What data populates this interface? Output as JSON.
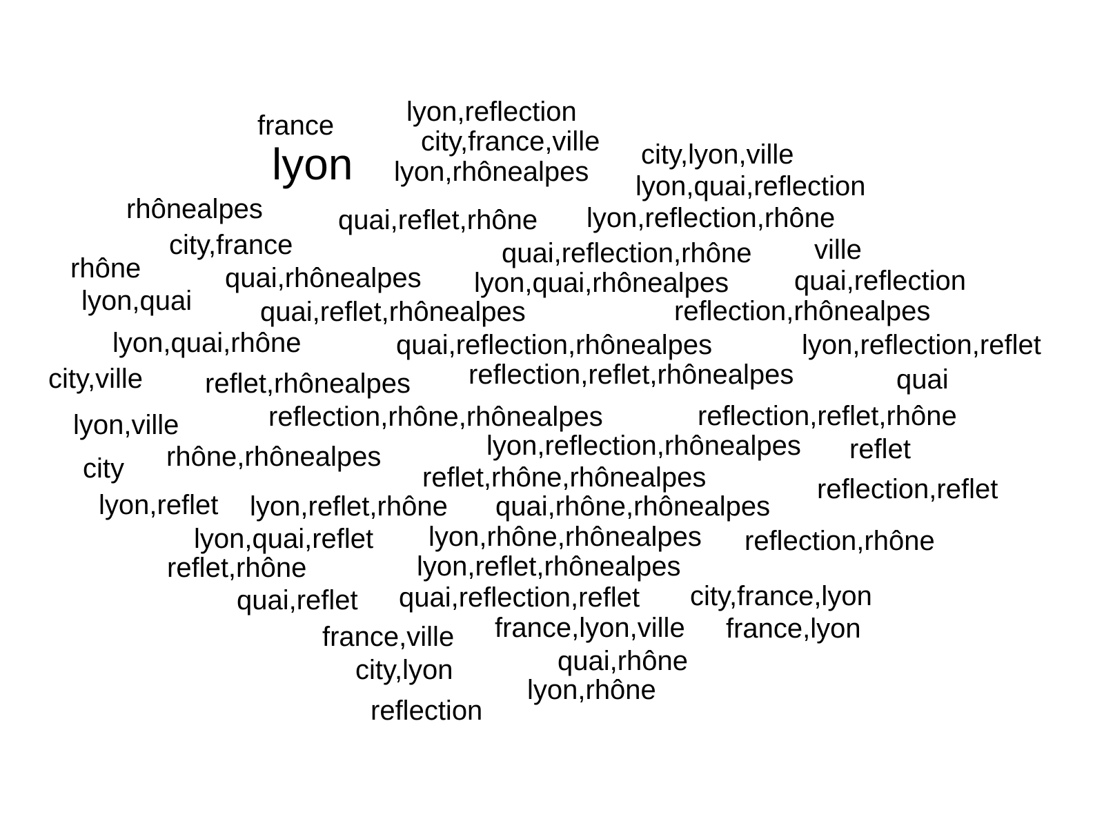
{
  "words": [
    "lyon,reflection",
    "france",
    "city,france,ville",
    "city,lyon,ville",
    "lyon",
    "lyon,rhônealpes",
    "lyon,quai,reflection",
    "rhônealpes",
    "quai,reflet,rhône",
    "lyon,reflection,rhône",
    "city,france",
    "quai,reflection,rhône",
    "ville",
    "rhône",
    "quai,rhônealpes",
    "lyon,quai,rhônealpes",
    "quai,reflection",
    "lyon,quai",
    "quai,reflet,rhônealpes",
    "reflection,rhônealpes",
    "lyon,quai,rhône",
    "quai,reflection,rhônealpes",
    "lyon,reflection,reflet",
    "city,ville",
    "reflet,rhônealpes",
    "reflection,reflet,rhônealpes",
    "quai",
    "lyon,ville",
    "reflection,rhône,rhônealpes",
    "reflection,reflet,rhône",
    "lyon,reflection,rhônealpes",
    "reflet",
    "city",
    "rhône,rhônealpes",
    "reflet,rhône,rhônealpes",
    "reflection,reflet",
    "lyon,reflet",
    "lyon,reflet,rhône",
    "quai,rhône,rhônealpes",
    "lyon,quai,reflet",
    "lyon,rhône,rhônealpes",
    "reflection,rhône",
    "reflet,rhône",
    "lyon,reflet,rhônealpes",
    "quai,reflet",
    "quai,reflection,reflet",
    "city,france,lyon",
    "france,ville",
    "france,lyon,ville",
    "france,lyon",
    "city,lyon",
    "quai,rhône",
    "lyon,rhône",
    "reflection"
  ]
}
